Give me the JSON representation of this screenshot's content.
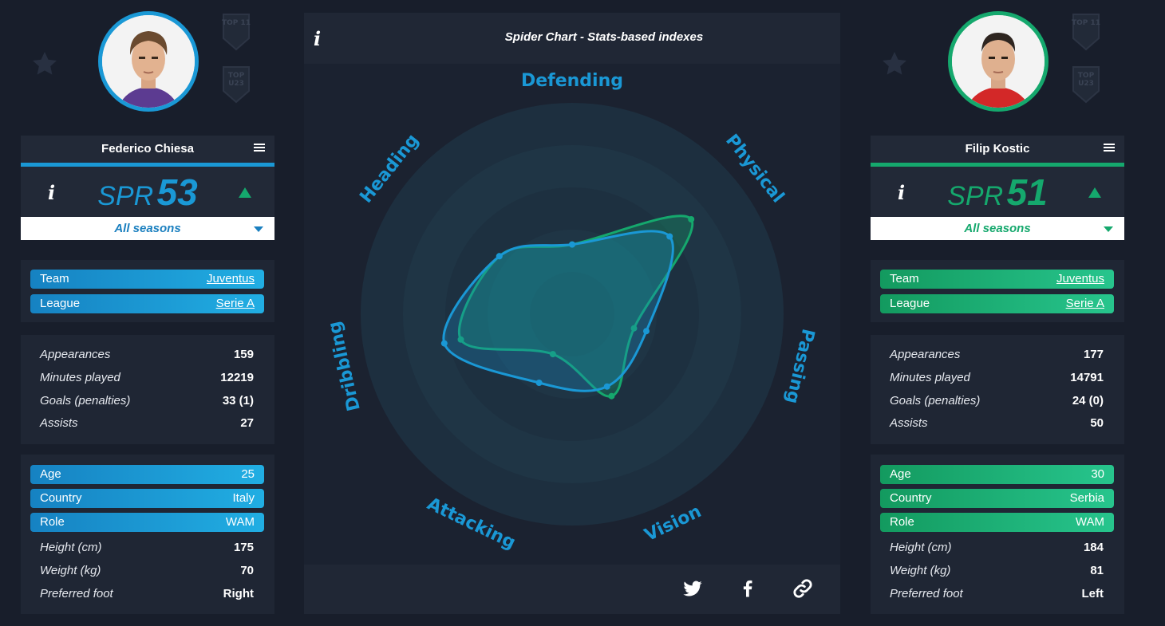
{
  "colors": {
    "player1_accent": "#1a98d5",
    "player2_accent": "#15a86d",
    "background": "#181e2b",
    "panel": "#1f2634"
  },
  "players": [
    {
      "name": "Federico Chiesa",
      "spr_label": "SPR",
      "spr_value": "53",
      "season": "All seasons",
      "team_label": "Team",
      "team_value": "Juventus",
      "league_label": "League",
      "league_value": "Serie A",
      "badges": [
        "TOP 11",
        "TOP U23"
      ],
      "stats": [
        {
          "label": "Appearances",
          "value": "159"
        },
        {
          "label": "Minutes played",
          "value": "12219"
        },
        {
          "label": "Goals (penalties)",
          "value": "33 (1)"
        },
        {
          "label": "Assists",
          "value": "27"
        }
      ],
      "bio_pills": [
        {
          "label": "Age",
          "value": "25"
        },
        {
          "label": "Country",
          "value": "Italy"
        },
        {
          "label": "Role",
          "value": "WAM"
        }
      ],
      "bio_rows": [
        {
          "label": "Height (cm)",
          "value": "175"
        },
        {
          "label": "Weight (kg)",
          "value": "70"
        },
        {
          "label": "Preferred foot",
          "value": "Right"
        }
      ]
    },
    {
      "name": "Filip Kostic",
      "spr_label": "SPR",
      "spr_value": "51",
      "season": "All seasons",
      "team_label": "Team",
      "team_value": "Juventus",
      "league_label": "League",
      "league_value": "Serie A",
      "badges": [
        "TOP 11",
        "TOP U23"
      ],
      "stats": [
        {
          "label": "Appearances",
          "value": "177"
        },
        {
          "label": "Minutes played",
          "value": "14791"
        },
        {
          "label": "Goals (penalties)",
          "value": "24 (0)"
        },
        {
          "label": "Assists",
          "value": "50"
        }
      ],
      "bio_pills": [
        {
          "label": "Age",
          "value": "30"
        },
        {
          "label": "Country",
          "value": "Serbia"
        },
        {
          "label": "Role",
          "value": "WAM"
        }
      ],
      "bio_rows": [
        {
          "label": "Height (cm)",
          "value": "184"
        },
        {
          "label": "Weight (kg)",
          "value": "81"
        },
        {
          "label": "Preferred foot",
          "value": "Left"
        }
      ]
    }
  ],
  "chart": {
    "title": "Spider Chart - Stats-based indexes",
    "social_icons": [
      "twitter-icon",
      "facebook-icon",
      "link-icon"
    ]
  },
  "chart_data": {
    "type": "radar",
    "title": "Spider Chart - Stats-based indexes",
    "categories": [
      "Defending",
      "Physical",
      "Passing",
      "Vision",
      "Attacking",
      "Dribbling",
      "Heading"
    ],
    "rmax": 100,
    "series": [
      {
        "name": "Federico Chiesa",
        "color": "#1a98d5",
        "values": [
          33,
          59,
          36,
          38,
          36,
          62,
          44
        ]
      },
      {
        "name": "Filip Kostic",
        "color": "#15a86d",
        "values": [
          33,
          72,
          30,
          43,
          21,
          54,
          44
        ]
      }
    ]
  }
}
